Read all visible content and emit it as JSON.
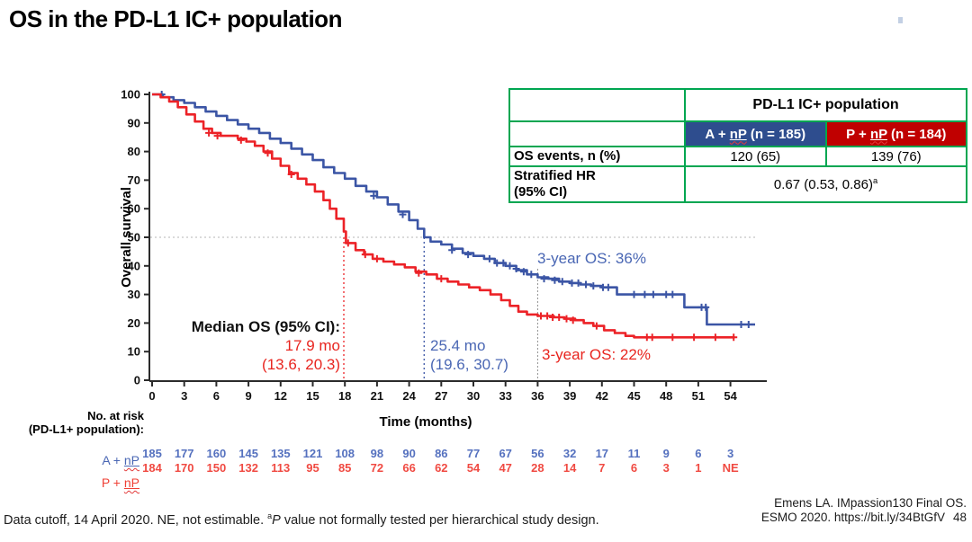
{
  "slide": {
    "title": "OS in the PD-L1 IC+ population"
  },
  "summary_table": {
    "population_header": "PD-L1 IC+ population",
    "arm_a": {
      "prefix": "A + ",
      "np": "nP",
      "suffix": " (n = 185)",
      "bg": "#2e4d8e"
    },
    "arm_p": {
      "prefix": "P + ",
      "np": "nP",
      "suffix": " (n = 184)",
      "bg": "#c00000"
    },
    "os_events_label": "OS events, n (%)",
    "os_events_a": "120 (65)",
    "os_events_p": "139 (76)",
    "hr_label_line1": "Stratified HR",
    "hr_label_line2": "(95% CI)",
    "hr_value": "0.67 (0.53, 0.86)",
    "hr_sup": "a",
    "border_color": "#00a651"
  },
  "chart_data": {
    "type": "line",
    "subtype": "kaplan-meier-step",
    "title": "",
    "xlabel": "Time (months)",
    "ylabel": "Overall survival",
    "xlim": [
      0,
      57
    ],
    "ylim": [
      0,
      100
    ],
    "x_ticks": [
      0,
      3,
      6,
      9,
      12,
      15,
      18,
      21,
      24,
      27,
      30,
      33,
      36,
      39,
      42,
      45,
      48,
      51,
      54
    ],
    "y_ticks": [
      0,
      10,
      20,
      30,
      40,
      50,
      60,
      70,
      80,
      90,
      100
    ],
    "grid": "dotted horizontal reference at y=50 only",
    "legend_position": "none",
    "reference_lines": {
      "median_y": 50,
      "red_median_x": 17.9,
      "blue_median_x": 25.4,
      "three_year_x": 36,
      "gray": "#b5b5b5"
    },
    "annotations": {
      "median_title": "Median OS (95% CI):",
      "red_median": "17.9 mo",
      "red_ci": "(13.6, 20.3)",
      "blue_median": "25.4 mo",
      "blue_ci": "(19.6, 30.7)",
      "os36": "3-year OS: 36%",
      "os22": "3-year OS: 22%"
    },
    "series": [
      {
        "name": "A + nP",
        "color": "#3b55a5",
        "median_months": 25.4,
        "three_year_os_pct": 36,
        "points": [
          [
            0,
            100
          ],
          [
            1,
            99
          ],
          [
            2,
            98
          ],
          [
            3,
            97
          ],
          [
            4,
            95.5
          ],
          [
            5,
            94
          ],
          [
            6,
            92.5
          ],
          [
            7,
            91
          ],
          [
            8,
            89.5
          ],
          [
            9,
            88
          ],
          [
            10,
            86.5
          ],
          [
            11,
            84.5
          ],
          [
            12,
            83
          ],
          [
            13,
            81
          ],
          [
            14,
            79
          ],
          [
            15,
            77
          ],
          [
            16,
            74.5
          ],
          [
            17,
            72.5
          ],
          [
            18,
            70.5
          ],
          [
            19,
            68
          ],
          [
            20,
            66
          ],
          [
            21,
            64
          ],
          [
            22,
            61.5
          ],
          [
            23,
            59
          ],
          [
            24,
            56
          ],
          [
            24.8,
            53
          ],
          [
            25.4,
            50
          ],
          [
            26,
            48.5
          ],
          [
            27,
            47.5
          ],
          [
            28,
            46
          ],
          [
            29,
            44.5
          ],
          [
            30,
            43.5
          ],
          [
            31,
            42.5
          ],
          [
            32,
            41
          ],
          [
            33,
            40
          ],
          [
            34,
            38.5
          ],
          [
            35,
            37
          ],
          [
            36,
            36
          ],
          [
            37,
            35.5
          ],
          [
            38,
            34.5
          ],
          [
            39,
            34
          ],
          [
            40,
            33.5
          ],
          [
            41,
            33
          ],
          [
            42,
            32.5
          ],
          [
            43.4,
            30
          ],
          [
            49.7,
            25.5
          ],
          [
            51.8,
            19.5
          ],
          [
            56.3,
            19.5
          ]
        ],
        "censors": [
          [
            0.9,
            100
          ],
          [
            20.7,
            64.5
          ],
          [
            23.4,
            58
          ],
          [
            28,
            45.5
          ],
          [
            29.5,
            44
          ],
          [
            31.5,
            42.5
          ],
          [
            32.2,
            41
          ],
          [
            32.8,
            41
          ],
          [
            33.4,
            40
          ],
          [
            34,
            39
          ],
          [
            34.7,
            38
          ],
          [
            35.4,
            37
          ],
          [
            36.6,
            35.5
          ],
          [
            37.6,
            35
          ],
          [
            38.3,
            34.5
          ],
          [
            39.2,
            34
          ],
          [
            39.8,
            34
          ],
          [
            40.5,
            33.5
          ],
          [
            41.2,
            33
          ],
          [
            42.1,
            32.5
          ],
          [
            42.6,
            32.5
          ],
          [
            45,
            30
          ],
          [
            46,
            30
          ],
          [
            46.8,
            30
          ],
          [
            48,
            30
          ],
          [
            48.6,
            30
          ],
          [
            51.3,
            25.5
          ],
          [
            51.7,
            25.5
          ],
          [
            55,
            19.5
          ],
          [
            55.7,
            19.5
          ]
        ]
      },
      {
        "name": "P + nP",
        "color": "#ec2227",
        "median_months": 17.9,
        "three_year_os_pct": 22,
        "points": [
          [
            0,
            100
          ],
          [
            0.8,
            99
          ],
          [
            1.6,
            97.5
          ],
          [
            2.4,
            95.5
          ],
          [
            3.2,
            93
          ],
          [
            4,
            90.5
          ],
          [
            4.8,
            88
          ],
          [
            5.6,
            86.5
          ],
          [
            6.4,
            85.5
          ],
          [
            8,
            84.5
          ],
          [
            8.8,
            83.5
          ],
          [
            9.6,
            82
          ],
          [
            10.4,
            80
          ],
          [
            11.2,
            77.5
          ],
          [
            12,
            75
          ],
          [
            12.8,
            72.5
          ],
          [
            13.6,
            70.5
          ],
          [
            14.4,
            68.5
          ],
          [
            15.2,
            66
          ],
          [
            16,
            63
          ],
          [
            16.6,
            60
          ],
          [
            17.2,
            56.5
          ],
          [
            17.9,
            52
          ],
          [
            18.1,
            48
          ],
          [
            19,
            45.5
          ],
          [
            19.8,
            44
          ],
          [
            20.6,
            42.5
          ],
          [
            21.6,
            41.5
          ],
          [
            22.6,
            40.5
          ],
          [
            23.6,
            39.5
          ],
          [
            24.6,
            38
          ],
          [
            25.6,
            37
          ],
          [
            26.6,
            35.5
          ],
          [
            27.6,
            34.5
          ],
          [
            28.6,
            33.5
          ],
          [
            29.6,
            32.5
          ],
          [
            30.6,
            31.5
          ],
          [
            31.6,
            30
          ],
          [
            32.6,
            28
          ],
          [
            33.4,
            26
          ],
          [
            34.2,
            24
          ],
          [
            35,
            23
          ],
          [
            36,
            22.5
          ],
          [
            37.5,
            22
          ],
          [
            38.5,
            21.5
          ],
          [
            39.5,
            21
          ],
          [
            40.3,
            20
          ],
          [
            41.2,
            19
          ],
          [
            42.2,
            17.5
          ],
          [
            43.2,
            16.5
          ],
          [
            44.2,
            15.5
          ],
          [
            45,
            15
          ],
          [
            54.4,
            15
          ]
        ],
        "censors": [
          [
            5.3,
            86.5
          ],
          [
            6.1,
            85.5
          ],
          [
            8.3,
            84
          ],
          [
            10.8,
            79.5
          ],
          [
            13,
            72
          ],
          [
            18.3,
            48
          ],
          [
            19.9,
            44
          ],
          [
            21,
            42.5
          ],
          [
            24.9,
            37.5
          ],
          [
            27,
            35.5
          ],
          [
            36.3,
            22.5
          ],
          [
            36.9,
            22.5
          ],
          [
            37.4,
            22
          ],
          [
            38,
            22
          ],
          [
            38.7,
            21.5
          ],
          [
            39.3,
            21
          ],
          [
            41.5,
            19
          ],
          [
            46.2,
            15
          ],
          [
            46.7,
            15
          ],
          [
            48.6,
            15
          ],
          [
            50.6,
            15
          ],
          [
            52.6,
            15
          ],
          [
            54.3,
            15
          ]
        ]
      }
    ]
  },
  "risk_table": {
    "header_line1": "No. at risk",
    "header_line2": "(PD-L1+ population):",
    "row_a": {
      "prefix": "A + ",
      "np": "nP"
    },
    "row_p": {
      "prefix": "P + ",
      "np": "nP"
    },
    "color_a": "#5571bf",
    "color_p": "#f04a42",
    "values_a": [
      "185",
      "177",
      "160",
      "145",
      "135",
      "121",
      "108",
      "98",
      "90",
      "86",
      "77",
      "67",
      "56",
      "32",
      "17",
      "11",
      "9",
      "6",
      "3"
    ],
    "values_p": [
      "184",
      "170",
      "150",
      "132",
      "113",
      "95",
      "85",
      "72",
      "66",
      "62",
      "54",
      "47",
      "28",
      "14",
      "7",
      "6",
      "3",
      "1",
      "NE"
    ]
  },
  "footer": {
    "left_pre": "Data cutoff, 14 April 2020. NE, not estimable. ",
    "sup": "a",
    "italic_p": "P",
    "left_post": " value not formally tested per hierarchical study design.",
    "right_line1": "Emens LA. IMpassion130 Final OS.",
    "right_line2": "ESMO 2020. https://bit.ly/34BtGfV",
    "page_number": "48"
  }
}
